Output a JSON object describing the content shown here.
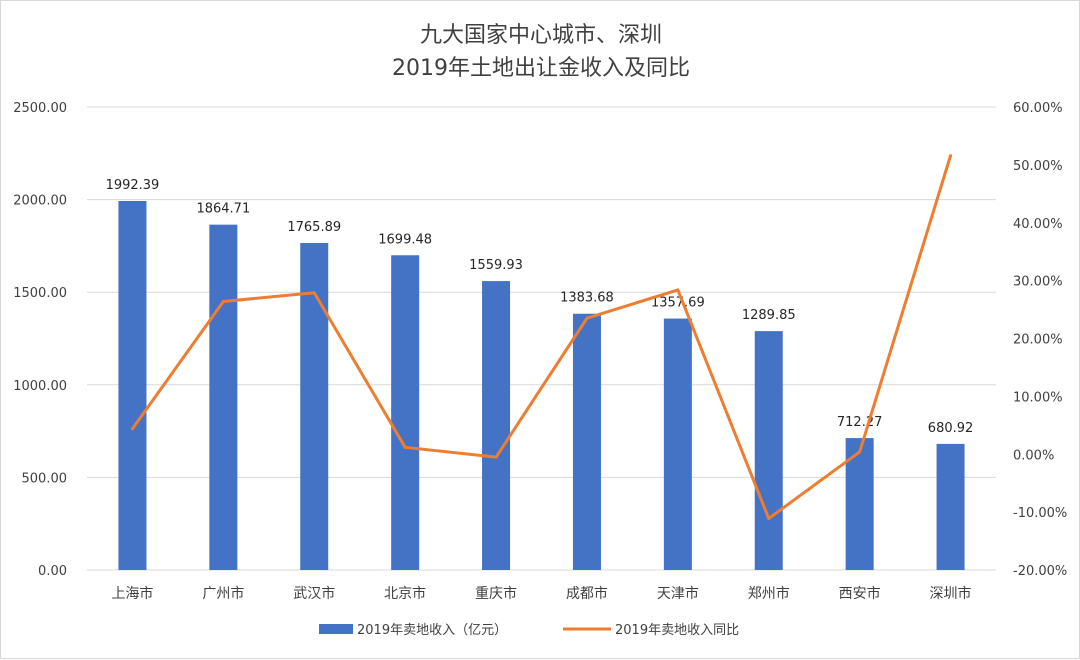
{
  "chart_data": {
    "type": "bar",
    "title": [
      "九大国家中心城市、深圳",
      "2019年土地出让金收入及同比"
    ],
    "categories": [
      "上海市",
      "广州市",
      "武汉市",
      "北京市",
      "重庆市",
      "成都市",
      "天津市",
      "郑州市",
      "西安市",
      "深圳市"
    ],
    "series": [
      {
        "name": "2019年卖地收入（亿元）",
        "type": "bar",
        "axis": "left",
        "color": "#4472c4",
        "values": [
          1992.39,
          1864.71,
          1765.89,
          1699.48,
          1559.93,
          1383.68,
          1357.69,
          1289.85,
          712.27,
          680.92
        ],
        "data_labels": [
          "1992.39",
          "1864.71",
          "1765.89",
          "1699.48",
          "1559.93",
          "1383.68",
          "1357.69",
          "1289.85",
          "712.27",
          "680.92"
        ]
      },
      {
        "name": "2019年卖地收入同比",
        "type": "line",
        "axis": "right",
        "color": "#ed7d31",
        "values": [
          4.4,
          26.4,
          27.9,
          1.2,
          -0.5,
          23.5,
          28.4,
          -11.1,
          0.4,
          51.6
        ]
      }
    ],
    "y_left": {
      "ylim": [
        0,
        2500
      ],
      "ticks": [
        0,
        500,
        1000,
        1500,
        2000,
        2500
      ],
      "tick_labels": [
        "0.00",
        "500.00",
        "1000.00",
        "1500.00",
        "2000.00",
        "2500.00"
      ]
    },
    "y_right": {
      "ylim": [
        -20,
        60
      ],
      "ticks": [
        -20,
        -10,
        0,
        10,
        20,
        30,
        40,
        50,
        60
      ],
      "tick_labels": [
        "-20.00%",
        "-10.00%",
        "0.00%",
        "10.00%",
        "20.00%",
        "30.00%",
        "40.00%",
        "50.00%",
        "60.00%"
      ]
    },
    "grid": true,
    "legend_position": "bottom"
  }
}
